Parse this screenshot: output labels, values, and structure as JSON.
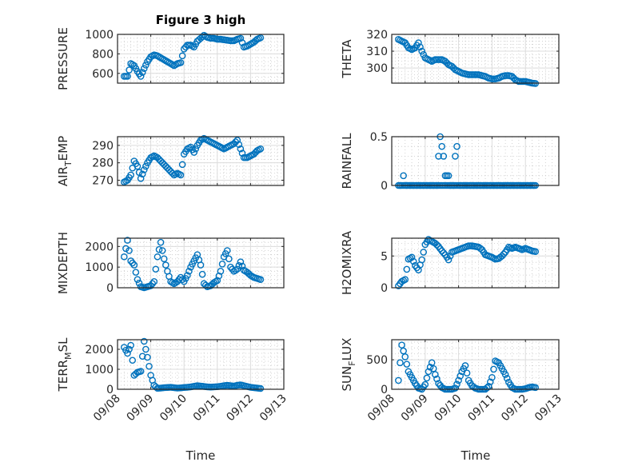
{
  "chart_data": {
    "type": "scatter",
    "title": "Figure 3 high",
    "xlabel": "Time",
    "x_ticks": [
      "09/08",
      "09/09",
      "09/10",
      "09/11",
      "09/12",
      "09/13"
    ],
    "x_unit": "days since 09/08",
    "xlim": [
      0,
      5
    ],
    "grid": "on (major + minor)",
    "marker": "open circle",
    "color": "#0072BD",
    "t": [
      0.2,
      0.3,
      0.4,
      0.5,
      0.6,
      0.7,
      0.8,
      0.9,
      1.0,
      1.1,
      1.2,
      1.3,
      1.4,
      1.5,
      1.6,
      1.7,
      1.8,
      1.9,
      2.0,
      2.1,
      2.2,
      2.3,
      2.4,
      2.5,
      2.6,
      2.7,
      2.8,
      2.9,
      3.0,
      3.1,
      3.2,
      3.3,
      3.4,
      3.5,
      3.6,
      3.7,
      3.8,
      3.9,
      4.0,
      4.1,
      4.2,
      4.3
    ],
    "subplots": [
      {
        "ylabel": "PRESSURE",
        "ylim": [
          500,
          1000
        ],
        "yticks": [
          600,
          800,
          1000
        ],
        "ytick_labels": [
          "600",
          "800",
          "1000"
        ],
        "values": [
          570,
          570,
          700,
          680,
          620,
          570,
          650,
          720,
          770,
          790,
          780,
          760,
          740,
          720,
          700,
          680,
          700,
          710,
          850,
          890,
          890,
          870,
          930,
          960,
          990,
          970,
          960,
          960,
          950,
          950,
          945,
          940,
          935,
          935,
          950,
          960,
          870,
          880,
          900,
          920,
          950,
          965
        ]
      },
      {
        "ylabel": "THETA",
        "ylim": [
          291,
          320
        ],
        "yticks": [
          300,
          310,
          320
        ],
        "ytick_labels": [
          "300",
          "310",
          "320"
        ],
        "values": [
          317,
          316,
          315,
          312,
          311,
          312,
          315,
          310,
          306,
          305,
          304,
          305,
          305,
          305,
          304,
          302,
          301,
          299,
          298,
          297,
          296.5,
          296,
          296,
          296,
          296,
          295.5,
          295,
          294,
          293.5,
          293.5,
          294,
          295,
          295.5,
          295.5,
          295,
          293,
          292,
          292,
          292,
          291.5,
          291,
          290.8
        ]
      },
      {
        "ylabel": "AIR_TEMP",
        "ylim": [
          267,
          295
        ],
        "yticks": [
          270,
          280,
          290
        ],
        "ytick_labels": [
          "270",
          "280",
          "290"
        ],
        "values": [
          269,
          270,
          273,
          281,
          278,
          271,
          276,
          280,
          283,
          284,
          283,
          281,
          279,
          277,
          275,
          273,
          274,
          273,
          285,
          288,
          289,
          286,
          290,
          293,
          294,
          293,
          292,
          291,
          290,
          289,
          288,
          289,
          290,
          291,
          293,
          288,
          283,
          283,
          284,
          285,
          287,
          288
        ]
      },
      {
        "ylabel": "RAINFALL",
        "ylim": [
          0,
          0.5
        ],
        "yticks": [
          0,
          0.5
        ],
        "ytick_labels": [
          "0",
          "0.5"
        ],
        "values": [
          0,
          0,
          0,
          0,
          0,
          0,
          0,
          0,
          0,
          0,
          0,
          0,
          0,
          0,
          0,
          0,
          0,
          0,
          0,
          0,
          0,
          0,
          0,
          0,
          0,
          0,
          0,
          0,
          0,
          0,
          0,
          0,
          0,
          0,
          0,
          0,
          0,
          0,
          0,
          0,
          0,
          0
        ],
        "extra_points": [
          [
            0.35,
            0.1
          ],
          [
            1.4,
            0.3
          ],
          [
            1.45,
            0.5
          ],
          [
            1.5,
            0.4
          ],
          [
            1.55,
            0.3
          ],
          [
            1.6,
            0.1
          ],
          [
            1.65,
            0.1
          ],
          [
            1.7,
            0.1
          ],
          [
            1.9,
            0.3
          ],
          [
            1.95,
            0.4
          ],
          [
            0.25,
            0
          ],
          [
            0.45,
            0
          ],
          [
            0.55,
            0
          ],
          [
            0.65,
            0
          ],
          [
            0.75,
            0
          ],
          [
            0.85,
            0
          ],
          [
            0.95,
            0
          ],
          [
            1.05,
            0
          ],
          [
            1.15,
            0
          ],
          [
            1.25,
            0
          ],
          [
            1.35,
            0
          ],
          [
            1.75,
            0
          ],
          [
            1.85,
            0
          ],
          [
            2.05,
            0
          ],
          [
            2.15,
            0
          ],
          [
            2.25,
            0
          ],
          [
            2.35,
            0
          ],
          [
            2.45,
            0
          ],
          [
            2.55,
            0
          ],
          [
            2.65,
            0
          ],
          [
            2.75,
            0
          ],
          [
            2.85,
            0
          ],
          [
            2.95,
            0
          ],
          [
            3.05,
            0
          ],
          [
            3.15,
            0
          ],
          [
            3.25,
            0
          ],
          [
            3.35,
            0
          ],
          [
            3.45,
            0
          ],
          [
            3.55,
            0
          ],
          [
            3.65,
            0
          ],
          [
            3.75,
            0
          ],
          [
            3.85,
            0
          ],
          [
            3.95,
            0
          ],
          [
            4.05,
            0
          ],
          [
            4.15,
            0
          ],
          [
            4.25,
            0
          ]
        ]
      },
      {
        "ylabel": "MIXDEPTH",
        "ylim": [
          0,
          2400
        ],
        "yticks": [
          0,
          1000,
          2000
        ],
        "ytick_labels": [
          "0",
          "1000",
          "2000"
        ],
        "values": [
          1500,
          2300,
          1300,
          1100,
          400,
          50,
          0,
          50,
          100,
          300,
          1500,
          2200,
          1400,
          800,
          300,
          200,
          300,
          500,
          300,
          600,
          1000,
          1300,
          1600,
          1100,
          200,
          50,
          100,
          250,
          350,
          800,
          1500,
          1800,
          1000,
          800,
          900,
          1250,
          850,
          750,
          600,
          500,
          450,
          400
        ]
      },
      {
        "ylabel": "H2OMIXRA",
        "ylim": [
          0,
          7.8
        ],
        "yticks": [
          0,
          5
        ],
        "ytick_labels": [
          "0",
          "5"
        ],
        "values": [
          0.3,
          1.0,
          1.3,
          4.5,
          4.8,
          3.5,
          2.8,
          4.4,
          6.8,
          7.6,
          7.3,
          7.0,
          6.5,
          5.8,
          5.2,
          4.4,
          5.6,
          5.8,
          6.0,
          6.2,
          6.4,
          6.6,
          6.6,
          6.5,
          6.4,
          6.0,
          5.2,
          5.0,
          4.8,
          4.5,
          4.6,
          5.0,
          5.6,
          6.4,
          6.2,
          6.4,
          6.2,
          6.0,
          6.2,
          6.0,
          5.8,
          5.7
        ]
      },
      {
        "ylabel": "TERR_MSL",
        "ylim": [
          0,
          2480
        ],
        "yticks": [
          0,
          1000,
          2000
        ],
        "ytick_labels": [
          "0",
          "1000",
          "2000"
        ],
        "values": [
          2100,
          1800,
          2200,
          700,
          850,
          900,
          2400,
          1600,
          700,
          200,
          50,
          60,
          80,
          90,
          100,
          80,
          60,
          70,
          90,
          100,
          120,
          150,
          180,
          160,
          140,
          120,
          110,
          120,
          130,
          150,
          180,
          200,
          180,
          160,
          200,
          220,
          180,
          140,
          100,
          80,
          60,
          40
        ]
      },
      {
        "ylabel": "SUN_FLUX",
        "ylim": [
          0,
          840
        ],
        "yticks": [
          0,
          500
        ],
        "ytick_labels": [
          "0",
          "500"
        ],
        "values": [
          150,
          750,
          550,
          300,
          200,
          100,
          20,
          0,
          80,
          300,
          450,
          250,
          100,
          30,
          0,
          0,
          0,
          20,
          150,
          300,
          400,
          150,
          60,
          20,
          0,
          0,
          0,
          50,
          200,
          480,
          450,
          350,
          250,
          120,
          30,
          0,
          0,
          0,
          10,
          30,
          40,
          30
        ]
      }
    ]
  }
}
